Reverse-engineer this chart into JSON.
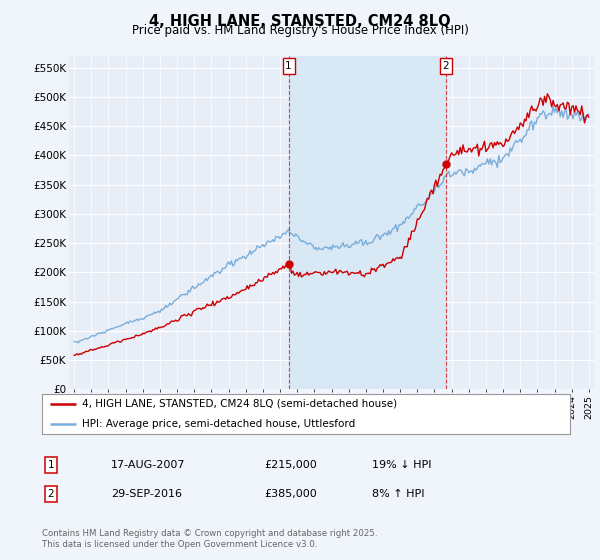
{
  "title": "4, HIGH LANE, STANSTED, CM24 8LQ",
  "subtitle": "Price paid vs. HM Land Registry's House Price Index (HPI)",
  "ylim": [
    0,
    570000
  ],
  "yticks": [
    0,
    50000,
    100000,
    150000,
    200000,
    250000,
    300000,
    350000,
    400000,
    450000,
    500000,
    550000
  ],
  "ytick_labels": [
    "£0",
    "£50K",
    "£100K",
    "£150K",
    "£200K",
    "£250K",
    "£300K",
    "£350K",
    "£400K",
    "£450K",
    "£500K",
    "£550K"
  ],
  "hpi_color": "#7aadda",
  "price_color": "#cc0000",
  "shaded_color": "#d8e8f5",
  "legend_line1": "4, HIGH LANE, STANSTED, CM24 8LQ (semi-detached house)",
  "legend_line2": "HPI: Average price, semi-detached house, Uttlesford",
  "footnote": "Contains HM Land Registry data © Crown copyright and database right 2025.\nThis data is licensed under the Open Government Licence v3.0.",
  "background_color": "#f0f4fb",
  "plot_bg_color": "#e8eef8",
  "grid_color": "#ffffff"
}
